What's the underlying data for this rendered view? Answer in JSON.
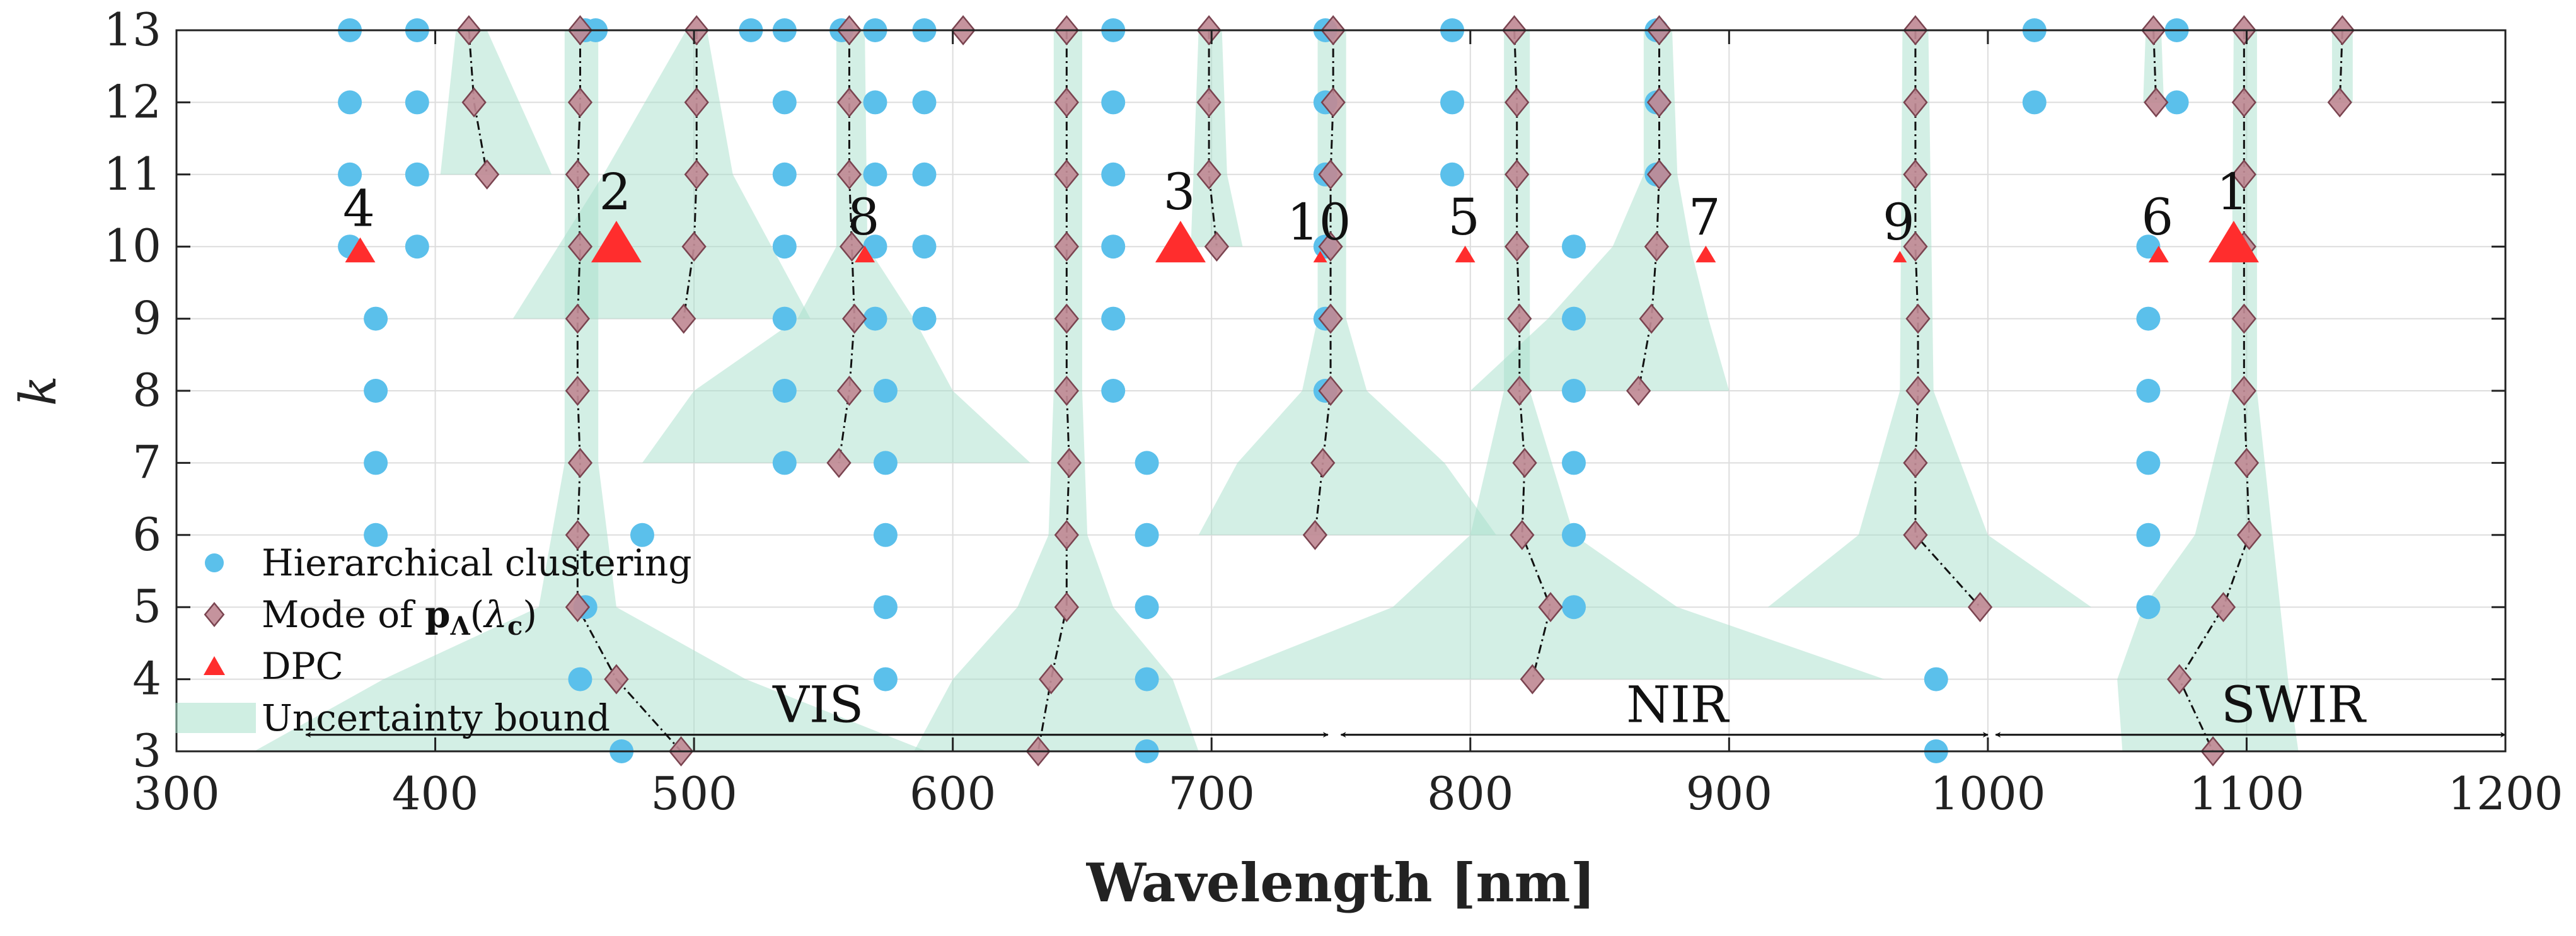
{
  "chart_data": {
    "type": "scatter",
    "xlabel": "Wavelength [nm]",
    "ylabel": "k",
    "xlim": [
      300,
      1200
    ],
    "ylim": [
      3,
      13
    ],
    "xticks": [
      300,
      400,
      500,
      600,
      700,
      800,
      900,
      1000,
      1100,
      1200
    ],
    "yticks": [
      3,
      4,
      5,
      6,
      7,
      8,
      9,
      10,
      11,
      12,
      13
    ],
    "grid": true,
    "legend_position": "bottom-left",
    "legend": [
      {
        "key": "hier",
        "label": "Hierarchical clustering"
      },
      {
        "key": "mode",
        "label": "Mode of p_Λ(λ_c)",
        "base": "Mode of ",
        "bold": "p",
        "sub": "Λ",
        "paren_open": "(",
        "lambda": "λ",
        "lambda_sub": "c",
        "paren_close": ")"
      },
      {
        "key": "dpc",
        "label": "DPC"
      },
      {
        "key": "unc",
        "label": "Uncertainty bound"
      }
    ],
    "bands": [
      {
        "name": "VIS",
        "range": [
          350,
          745
        ],
        "label_x": 548
      },
      {
        "name": "NIR",
        "range": [
          750,
          1000
        ],
        "label_x": 880
      },
      {
        "name": "SWIR",
        "range": [
          1003,
          1200
        ],
        "label_x": 1118
      }
    ],
    "hier_columns": [
      {
        "x": 367,
        "ks": [
          13,
          12,
          11,
          10
        ]
      },
      {
        "x": 377,
        "ks": [
          9,
          8,
          7,
          6
        ]
      },
      {
        "x": 393,
        "ks": [
          13,
          12,
          11,
          10
        ]
      },
      {
        "x": 456,
        "ks": [
          4
        ]
      },
      {
        "x": 458,
        "ks": [
          13,
          5
        ]
      },
      {
        "x": 462,
        "ks": [
          13
        ]
      },
      {
        "x": 472,
        "ks": [
          3
        ]
      },
      {
        "x": 480,
        "ks": [
          6
        ]
      },
      {
        "x": 522,
        "ks": [
          13
        ]
      },
      {
        "x": 535,
        "ks": [
          13,
          12,
          11,
          10,
          9,
          8,
          7
        ]
      },
      {
        "x": 557,
        "ks": [
          13
        ]
      },
      {
        "x": 570,
        "ks": [
          13,
          12,
          11,
          10,
          9
        ]
      },
      {
        "x": 574,
        "ks": [
          8,
          7,
          6,
          5,
          4
        ]
      },
      {
        "x": 589,
        "ks": [
          13,
          12,
          11,
          10,
          9
        ]
      },
      {
        "x": 662,
        "ks": [
          13,
          12,
          11,
          10,
          9,
          8
        ]
      },
      {
        "x": 675,
        "ks": [
          7,
          6,
          5,
          4,
          3
        ]
      },
      {
        "x": 744,
        "ks": [
          13,
          12,
          11,
          10,
          9,
          8
        ]
      },
      {
        "x": 793,
        "ks": [
          13,
          12,
          11
        ]
      },
      {
        "x": 840,
        "ks": [
          10,
          9,
          8,
          7,
          6,
          5
        ]
      },
      {
        "x": 872,
        "ks": [
          13,
          12,
          11
        ]
      },
      {
        "x": 980,
        "ks": [
          4,
          3
        ]
      },
      {
        "x": 1018,
        "ks": [
          13,
          12
        ]
      },
      {
        "x": 1062,
        "ks": [
          10,
          9,
          8,
          7,
          6,
          5
        ]
      },
      {
        "x": 1073,
        "ks": [
          13,
          12
        ]
      }
    ],
    "mode_series": [
      {
        "points": [
          [
            413,
            13
          ],
          [
            415,
            12
          ],
          [
            420,
            11
          ]
        ],
        "band": {
          "ys": [
            13,
            11
          ],
          "left": [
            408,
            402
          ],
          "right": [
            420,
            445
          ]
        }
      },
      {
        "points": [
          [
            456,
            13
          ],
          [
            456,
            12
          ],
          [
            455,
            11
          ],
          [
            456,
            10
          ],
          [
            455,
            9
          ],
          [
            455,
            8
          ],
          [
            456,
            7
          ],
          [
            455,
            6
          ],
          [
            455,
            5
          ],
          [
            470,
            4
          ],
          [
            495,
            3
          ]
        ],
        "band": {
          "ys": [
            13,
            10,
            7,
            5,
            4,
            3
          ],
          "left": [
            450,
            450,
            450,
            440,
            380,
            330
          ],
          "right": [
            463,
            463,
            463,
            470,
            520,
            590
          ]
        }
      },
      {
        "points": [
          [
            501,
            13
          ],
          [
            501,
            12
          ],
          [
            501,
            11
          ],
          [
            500,
            10
          ],
          [
            496,
            9
          ]
        ],
        "band": {
          "ys": [
            13,
            11,
            9
          ],
          "left": [
            497,
            465,
            430
          ],
          "right": [
            505,
            515,
            545
          ]
        }
      },
      {
        "points": [
          [
            560,
            13
          ],
          [
            560,
            12
          ],
          [
            560,
            11
          ],
          [
            561,
            10
          ],
          [
            562,
            9
          ],
          [
            560,
            8
          ],
          [
            556,
            7
          ]
        ],
        "band": {
          "ys": [
            13,
            10,
            9,
            8,
            7
          ],
          "left": [
            555,
            555,
            540,
            500,
            480
          ],
          "right": [
            566,
            567,
            585,
            600,
            630
          ]
        }
      },
      {
        "points": [
          [
            644,
            13
          ],
          [
            644,
            12
          ],
          [
            644,
            11
          ],
          [
            644,
            10
          ],
          [
            644,
            9
          ],
          [
            644,
            8
          ],
          [
            645,
            7
          ],
          [
            644,
            6
          ],
          [
            644,
            5
          ],
          [
            638,
            4
          ],
          [
            633,
            3
          ]
        ],
        "band": {
          "ys": [
            13,
            8,
            6,
            5,
            4,
            3
          ],
          "left": [
            639,
            639,
            637,
            625,
            600,
            585
          ],
          "right": [
            650,
            650,
            652,
            662,
            685,
            695
          ]
        }
      },
      {
        "points": [
          [
            699,
            13
          ],
          [
            699,
            12
          ],
          [
            699,
            11
          ],
          [
            702,
            10
          ]
        ],
        "band": {
          "ys": [
            13,
            11,
            10
          ],
          "left": [
            695,
            693,
            692
          ],
          "right": [
            704,
            706,
            712
          ]
        }
      },
      {
        "points": [
          [
            747,
            13
          ],
          [
            747,
            12
          ],
          [
            746,
            11
          ],
          [
            746,
            10
          ],
          [
            746,
            9
          ],
          [
            746,
            8
          ],
          [
            743,
            7
          ],
          [
            740,
            6
          ]
        ],
        "band": {
          "ys": [
            13,
            9,
            8,
            7,
            6
          ],
          "left": [
            741,
            741,
            735,
            710,
            695
          ],
          "right": [
            752,
            752,
            760,
            790,
            810
          ]
        }
      },
      {
        "points": [
          [
            817,
            13
          ],
          [
            818,
            12
          ],
          [
            818,
            11
          ],
          [
            818,
            10
          ],
          [
            819,
            9
          ],
          [
            819,
            8
          ],
          [
            821,
            7
          ],
          [
            820,
            6
          ],
          [
            831,
            5
          ],
          [
            824,
            4
          ]
        ],
        "band": {
          "ys": [
            13,
            8,
            6,
            5,
            4
          ],
          "left": [
            813,
            813,
            800,
            770,
            700
          ],
          "right": [
            823,
            823,
            840,
            880,
            960
          ]
        }
      },
      {
        "points": [
          [
            873,
            13
          ],
          [
            873,
            12
          ],
          [
            873,
            11
          ],
          [
            872,
            10
          ],
          [
            870,
            9
          ],
          [
            865,
            8
          ]
        ],
        "band": {
          "ys": [
            13,
            11,
            10,
            9,
            8
          ],
          "left": [
            867,
            867,
            855,
            830,
            800
          ],
          "right": [
            878,
            880,
            885,
            892,
            900
          ]
        }
      },
      {
        "points": [
          [
            972,
            13
          ],
          [
            972,
            12
          ],
          [
            972,
            11
          ],
          [
            972,
            10
          ],
          [
            973,
            9
          ],
          [
            973,
            8
          ],
          [
            972,
            7
          ],
          [
            972,
            6
          ],
          [
            997,
            5
          ]
        ],
        "band": {
          "ys": [
            13,
            8,
            6,
            5
          ],
          "left": [
            967,
            966,
            950,
            915
          ],
          "right": [
            977,
            979,
            1000,
            1040
          ]
        }
      },
      {
        "points": [
          [
            1064,
            13
          ],
          [
            1065,
            12
          ]
        ],
        "band": {
          "ys": [
            13,
            12
          ],
          "left": [
            1061,
            1060
          ],
          "right": [
            1067,
            1068
          ]
        }
      },
      {
        "points": [
          [
            1099,
            13
          ],
          [
            1099,
            12
          ],
          [
            1099,
            11
          ],
          [
            1099,
            10
          ],
          [
            1099,
            9
          ],
          [
            1099,
            8
          ],
          [
            1100,
            7
          ],
          [
            1101,
            6
          ],
          [
            1091,
            5
          ],
          [
            1074,
            4
          ],
          [
            1087,
            3
          ]
        ],
        "band": {
          "ys": [
            13,
            8,
            6,
            5,
            4,
            3
          ],
          "left": [
            1095,
            1094,
            1080,
            1060,
            1050,
            1052
          ],
          "right": [
            1104,
            1104,
            1110,
            1113,
            1116,
            1120
          ]
        }
      },
      {
        "points": [
          [
            1137,
            13
          ],
          [
            1136,
            12
          ]
        ],
        "band": {
          "ys": [
            13,
            12
          ],
          "left": [
            1133,
            1133
          ],
          "right": [
            1141,
            1141
          ]
        }
      }
    ],
    "mode_singles": [
      [
        604,
        13
      ]
    ],
    "dpc": [
      {
        "label": "1",
        "x": 1095,
        "k": 10,
        "size": "large"
      },
      {
        "label": "2",
        "x": 470,
        "k": 10,
        "size": "large"
      },
      {
        "label": "3",
        "x": 688,
        "k": 10,
        "size": "large"
      },
      {
        "label": "4",
        "x": 371,
        "k": 10,
        "size": "medium"
      },
      {
        "label": "5",
        "x": 798,
        "k": 10,
        "size": "small"
      },
      {
        "label": "6",
        "x": 1066,
        "k": 10,
        "size": "small"
      },
      {
        "label": "7",
        "x": 891,
        "k": 10,
        "size": "small"
      },
      {
        "label": "8",
        "x": 566,
        "k": 10,
        "size": "small"
      },
      {
        "label": "9",
        "x": 966,
        "k": 10,
        "size": "tiny"
      },
      {
        "label": "10",
        "x": 742,
        "k": 10,
        "size": "tiny"
      }
    ],
    "colors": {
      "hier": "#5bc0eb",
      "mode_fill": "#c08a95",
      "mode_stroke": "#7a4450",
      "dpc": "#ff2d2d",
      "uncertainty": "#a8e0cb",
      "grid": "#dddddd",
      "axis": "#222222"
    }
  }
}
